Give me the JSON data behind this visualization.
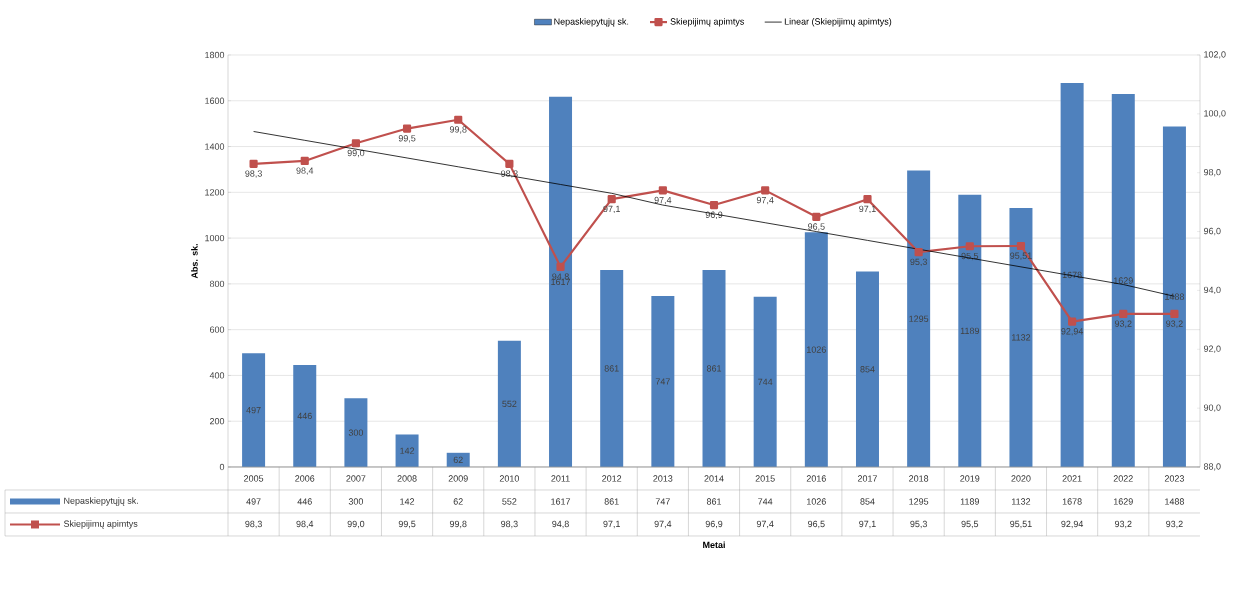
{
  "chart_data": {
    "type": "bar",
    "annotations": [
      "Metai"
    ],
    "ylabel": "Abs. sk.",
    "categories": [
      "2005",
      "2006",
      "2007",
      "2008",
      "2009",
      "2010",
      "2011",
      "2012",
      "2013",
      "2014",
      "2015",
      "2016",
      "2017",
      "2018",
      "2019",
      "2020",
      "2021",
      "2022",
      "2023"
    ],
    "series": [
      {
        "name": "Nepaskiepytųjų sk.",
        "color": "#4f81bd",
        "values": [
          497,
          446,
          300,
          142,
          62,
          552,
          1617,
          861,
          747,
          861,
          744,
          1026,
          854,
          1295,
          1189,
          1132,
          1678,
          1629,
          1488
        ],
        "value_labels": [
          "497",
          "446",
          "300",
          "142",
          "62",
          "552",
          "1617",
          "861",
          "747",
          "861",
          "744",
          "1026",
          "854",
          "1295",
          "1189",
          "1132",
          "1678",
          "1629",
          "1488"
        ]
      },
      {
        "name": "Skiepijimų apimtys",
        "type": "line",
        "axis": "y2",
        "color": "#c0504d",
        "values": [
          98.3,
          98.4,
          99.0,
          99.5,
          99.8,
          98.3,
          94.8,
          97.1,
          97.4,
          96.9,
          97.4,
          96.5,
          97.1,
          95.3,
          95.5,
          95.51,
          92.94,
          93.2,
          93.2
        ],
        "value_labels": [
          "98,3",
          "98,4",
          "99,0",
          "99,5",
          "99,8",
          "98,3",
          "94,8",
          "97,1",
          "97,4",
          "96,9",
          "97,4",
          "96,5",
          "97,1",
          "95,3",
          "95,5",
          "95,51",
          "92,94",
          "93,2",
          "93,2"
        ]
      },
      {
        "name": "Linear (Skiepijimų apimtys)",
        "type": "line",
        "axis": "y2",
        "color": "#000000",
        "marker": "none",
        "values": [
          99.4,
          99.1,
          98.8,
          98.5,
          98.2,
          97.9,
          97.6,
          97.3,
          96.9,
          96.6,
          96.3,
          96.0,
          95.7,
          95.4,
          95.1,
          94.8,
          94.5,
          94.2,
          93.8
        ]
      }
    ],
    "ylim": [
      0,
      1800
    ],
    "yticks": [
      0,
      200,
      400,
      600,
      800,
      1000,
      1200,
      1400,
      1600,
      1800
    ],
    "y2lim": [
      88,
      102
    ],
    "y2ticks": [
      {
        "value": 88,
        "label": "88,0"
      },
      {
        "value": 90,
        "label": "90,0"
      },
      {
        "value": 92,
        "label": "92,0"
      },
      {
        "value": 94,
        "label": "94,0"
      },
      {
        "value": 96,
        "label": "96,0"
      },
      {
        "value": 98,
        "label": "98,0"
      },
      {
        "value": 100,
        "label": "100,0"
      },
      {
        "value": 102,
        "label": "102,0"
      }
    ],
    "grid": "y",
    "legend": "top",
    "marker": "square",
    "line_style": "solid"
  }
}
